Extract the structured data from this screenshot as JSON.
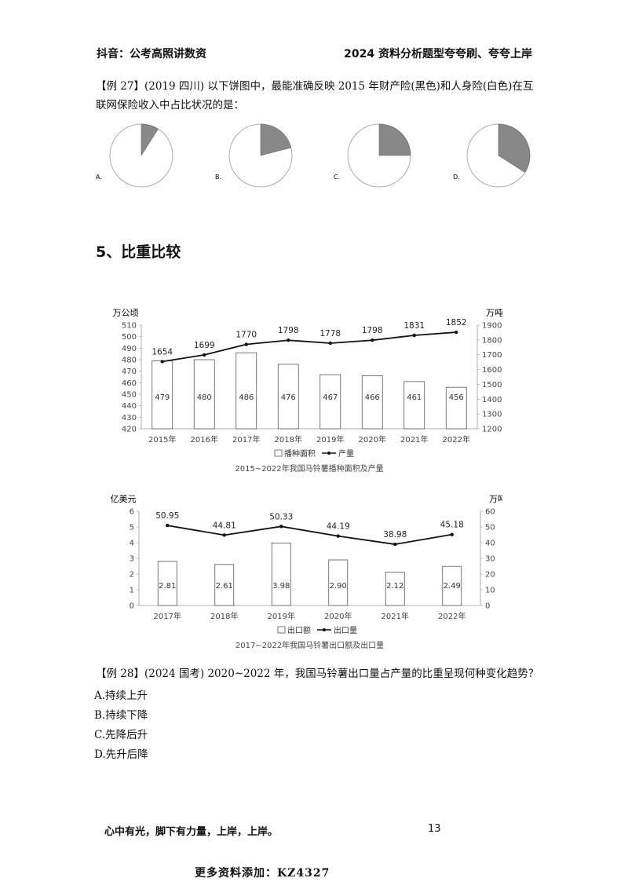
{
  "header": {
    "left": "抖音：公考高照讲数资",
    "right": "2024 资料分析题型夸夸刷、夸夸上岸"
  },
  "q27": {
    "text_line1": "【例 27】(2019 四川) 以下饼图中，最能准确反映 2015 年财产险(黑色)和人身险(白色)在互",
    "text_line2": "联网保险收入中占比状况的是：",
    "options": [
      {
        "label": "A.",
        "dark_fraction": 0.09
      },
      {
        "label": "B.",
        "dark_fraction": 0.21
      },
      {
        "label": "C.",
        "dark_fraction": 0.25
      },
      {
        "label": "D.",
        "dark_fraction": 0.34
      }
    ]
  },
  "section": {
    "title": "5、比重比较"
  },
  "chart_data": [
    {
      "type": "bar",
      "title": "2015~2022年我国马铃薯播种面积及产量",
      "left_unit": "万公顷",
      "right_unit": "万吨",
      "categories": [
        "2015年",
        "2016年",
        "2017年",
        "2018年",
        "2019年",
        "2020年",
        "2021年",
        "2022年"
      ],
      "series": [
        {
          "name": "播种面积",
          "type": "bar",
          "axis": "left",
          "values": [
            479,
            480,
            486,
            476,
            467,
            466,
            461,
            456
          ]
        },
        {
          "name": "产量",
          "type": "line",
          "axis": "right",
          "values": [
            1654,
            1699,
            1770,
            1798,
            1778,
            1798,
            1831,
            1852
          ]
        }
      ],
      "ylim_left": [
        420,
        510
      ],
      "yticks_left": [
        420,
        430,
        440,
        450,
        460,
        470,
        480,
        490,
        500,
        510
      ],
      "ylim_right": [
        1200,
        1900
      ],
      "yticks_right": [
        1200,
        1300,
        1400,
        1500,
        1600,
        1700,
        1800,
        1900
      ],
      "legend": "bottom"
    },
    {
      "type": "bar",
      "title": "2017~2022年我国马铃薯出口额及出口量",
      "left_unit": "亿美元",
      "right_unit": "万吨",
      "categories": [
        "2017年",
        "2018年",
        "2019年",
        "2020年",
        "2021年",
        "2022年"
      ],
      "series": [
        {
          "name": "出口额",
          "type": "bar",
          "axis": "left",
          "values": [
            2.81,
            2.61,
            3.98,
            2.9,
            2.12,
            2.49
          ],
          "labels": [
            "2.81",
            "2.61",
            "3.98",
            "2.90",
            "2.12",
            "2.49"
          ]
        },
        {
          "name": "出口量",
          "type": "line",
          "axis": "right",
          "values": [
            50.95,
            44.81,
            50.33,
            44.19,
            38.98,
            45.18
          ],
          "labels": [
            "50.95",
            "44.81",
            "50.33",
            "44.19",
            "38.98",
            "45.18"
          ]
        }
      ],
      "ylim_left": [
        0,
        6
      ],
      "yticks_left": [
        0,
        1,
        2,
        3,
        4,
        5,
        6
      ],
      "ylim_right": [
        0,
        60
      ],
      "yticks_right": [
        0,
        10,
        20,
        30,
        40,
        50,
        60
      ],
      "legend": "bottom"
    }
  ],
  "q28": {
    "text": "【例 28】(2024 国考) 2020~2022 年，我国马铃薯出口量占产量的比重呈现何种变化趋势？",
    "options": [
      "A.持续上升",
      "B.持续下降",
      "C.先降后升",
      "D.先升后降"
    ]
  },
  "footer": {
    "motto": "心中有光，脚下有力量，上岸，上岸。",
    "page": "13"
  },
  "watermark": "更多资料添加：KZ4327"
}
